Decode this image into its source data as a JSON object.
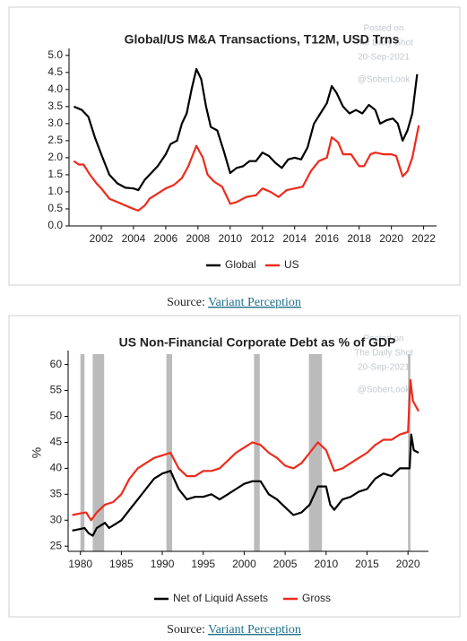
{
  "chart_data": [
    {
      "type": "line",
      "title": "Global/US M&A Transactions, T12M, USD Trns",
      "watermark": [
        "Posted on",
        "The Daily Shot",
        "20-Sep-2021",
        "@SoberLook"
      ],
      "xlim": [
        2000,
        2022.8
      ],
      "xticks": [
        2002,
        2004,
        2006,
        2008,
        2010,
        2012,
        2014,
        2016,
        2018,
        2020,
        2022
      ],
      "ylim": [
        0,
        5.1
      ],
      "yticks": [
        {
          "value": 0,
          "label": "0.0"
        },
        {
          "value": 0.5,
          "label": "0.5"
        },
        {
          "value": 1,
          "label": "1.0"
        },
        {
          "value": 1.5,
          "label": "1.5"
        },
        {
          "value": 2,
          "label": "2.0"
        },
        {
          "value": 2.5,
          "label": "2.5"
        },
        {
          "value": 3,
          "label": "3.0"
        },
        {
          "value": 3.5,
          "label": "3.5"
        },
        {
          "value": 4,
          "label": "4.0"
        },
        {
          "value": 4.5,
          "label": "4.5"
        },
        {
          "value": 5,
          "label": "5.0"
        }
      ],
      "grid": false,
      "legend": "bottom",
      "series": [
        {
          "name": "Global",
          "color": "#000000",
          "x": [
            2000.3,
            2000.8,
            2001.2,
            2001.6,
            2002.0,
            2002.5,
            2003.0,
            2003.5,
            2004.0,
            2004.3,
            2004.7,
            2005.0,
            2005.5,
            2006.0,
            2006.3,
            2006.7,
            2007.0,
            2007.3,
            2007.6,
            2007.9,
            2008.2,
            2008.5,
            2008.8,
            2009.2,
            2009.6,
            2010.0,
            2010.4,
            2010.8,
            2011.2,
            2011.6,
            2012.0,
            2012.4,
            2012.8,
            2013.2,
            2013.6,
            2014.0,
            2014.4,
            2014.8,
            2015.2,
            2015.6,
            2016.0,
            2016.3,
            2016.6,
            2017.0,
            2017.4,
            2017.8,
            2018.2,
            2018.6,
            2019.0,
            2019.3,
            2019.7,
            2020.1,
            2020.4,
            2020.7,
            2021.0,
            2021.3,
            2021.6
          ],
          "values": [
            3.5,
            3.4,
            3.2,
            2.6,
            2.1,
            1.5,
            1.25,
            1.12,
            1.1,
            1.05,
            1.35,
            1.5,
            1.75,
            2.1,
            2.4,
            2.5,
            3.0,
            3.3,
            4.0,
            4.6,
            4.3,
            3.5,
            2.9,
            2.8,
            2.2,
            1.55,
            1.7,
            1.75,
            1.9,
            1.9,
            2.15,
            2.05,
            1.85,
            1.7,
            1.95,
            2.0,
            1.95,
            2.3,
            3.0,
            3.3,
            3.6,
            4.1,
            3.9,
            3.5,
            3.3,
            3.4,
            3.3,
            3.55,
            3.4,
            3.0,
            3.1,
            3.15,
            3.0,
            2.5,
            2.8,
            3.3,
            4.45
          ]
        },
        {
          "name": "US",
          "color": "#ee2a1b",
          "x": [
            2000.3,
            2000.6,
            2000.9,
            2001.3,
            2001.7,
            2002.0,
            2002.5,
            2003.0,
            2003.5,
            2004.0,
            2004.3,
            2004.7,
            2005.0,
            2005.5,
            2006.0,
            2006.5,
            2007.0,
            2007.4,
            2007.9,
            2008.3,
            2008.6,
            2009.0,
            2009.5,
            2010.0,
            2010.4,
            2011.0,
            2011.6,
            2012.0,
            2012.5,
            2013.0,
            2013.5,
            2014.0,
            2014.5,
            2015.0,
            2015.5,
            2016.0,
            2016.3,
            2016.7,
            2017.0,
            2017.5,
            2018.0,
            2018.3,
            2018.7,
            2019.0,
            2019.5,
            2020.0,
            2020.3,
            2020.7,
            2021.0,
            2021.3,
            2021.7
          ],
          "values": [
            1.9,
            1.8,
            1.8,
            1.5,
            1.25,
            1.1,
            0.8,
            0.7,
            0.6,
            0.5,
            0.45,
            0.6,
            0.8,
            0.95,
            1.1,
            1.2,
            1.4,
            1.75,
            2.35,
            2.0,
            1.5,
            1.3,
            1.15,
            0.65,
            0.7,
            0.85,
            0.9,
            1.1,
            1.0,
            0.85,
            1.05,
            1.1,
            1.15,
            1.6,
            1.9,
            2.0,
            2.6,
            2.45,
            2.1,
            2.1,
            1.75,
            1.75,
            2.1,
            2.15,
            2.1,
            2.1,
            2.05,
            1.45,
            1.6,
            2.0,
            2.95
          ]
        }
      ]
    },
    {
      "type": "line",
      "title": "US Non-Financial Corporate Debt as % of GDP",
      "y_label": "%",
      "watermark": [
        "Posted on",
        "The Daily Shot",
        "20-Sep-2021",
        "@SoberLook"
      ],
      "xlim": [
        1978.5,
        2022.5
      ],
      "xticks": [
        1980,
        1985,
        1990,
        1995,
        2000,
        2005,
        2010,
        2015,
        2020
      ],
      "ylim": [
        24,
        62
      ],
      "yticks": [
        25,
        30,
        35,
        40,
        45,
        50,
        55,
        60
      ],
      "grid": false,
      "legend": "bottom",
      "shaded_color": "#bbbbbb",
      "shaded_periods": [
        [
          1980.0,
          1980.5
        ],
        [
          1981.5,
          1982.9
        ],
        [
          1990.5,
          1991.2
        ],
        [
          2001.2,
          2001.9
        ],
        [
          2007.9,
          2009.5
        ],
        [
          2020.0,
          2020.3
        ]
      ],
      "series": [
        {
          "name": "Net of Liquid Assets",
          "color": "#000000",
          "x": [
            1979,
            1980,
            1980.5,
            1981,
            1981.5,
            1982,
            1983,
            1983.5,
            1984,
            1985,
            1986,
            1987,
            1988,
            1989,
            1990,
            1991,
            1992,
            1993,
            1994,
            1995,
            1996,
            1997,
            1998,
            1999,
            2000,
            2001,
            2002,
            2003,
            2004,
            2005,
            2006,
            2007,
            2008,
            2009,
            2010,
            2010.5,
            2011,
            2012,
            2013,
            2014,
            2015,
            2016,
            2017,
            2018,
            2019,
            2019.8,
            2020.2,
            2020.4,
            2020.7,
            2021.3
          ],
          "values": [
            28,
            28.3,
            28.5,
            27.5,
            27.0,
            28.5,
            29.5,
            28.5,
            29,
            30,
            32,
            34,
            36,
            38,
            39,
            39.5,
            36,
            34,
            34.5,
            34.5,
            35,
            34,
            35,
            36,
            37,
            37.5,
            37.5,
            35,
            34,
            32.5,
            31,
            31.5,
            33,
            36.5,
            36.5,
            33,
            32,
            34,
            34.5,
            35.5,
            36,
            38,
            39,
            38.5,
            40,
            40,
            40,
            46.5,
            43.5,
            43
          ]
        },
        {
          "name": "Gross",
          "color": "#ee2a1b",
          "x": [
            1979,
            1980,
            1980.7,
            1981.3,
            1982,
            1983,
            1984,
            1985,
            1986,
            1987,
            1988,
            1989,
            1990,
            1991,
            1992,
            1993,
            1994,
            1995,
            1996,
            1997,
            1998,
            1999,
            2000,
            2001,
            2002,
            2003,
            2004,
            2005,
            2006,
            2007,
            2008,
            2009,
            2010,
            2011,
            2012,
            2013,
            2014,
            2015,
            2016,
            2017,
            2018,
            2019,
            2020,
            2020.3,
            2020.6,
            2021.3
          ],
          "values": [
            31,
            31.3,
            31.5,
            30,
            31.5,
            33,
            33.5,
            35,
            38,
            40,
            41,
            42,
            42.5,
            43,
            40,
            38.5,
            38.5,
            39.5,
            39.5,
            40,
            41.5,
            43,
            44,
            45,
            44.5,
            43,
            42,
            40.5,
            40,
            41,
            43,
            45,
            43.5,
            39.5,
            40,
            41,
            42,
            43,
            44.5,
            45.5,
            45.5,
            46.5,
            47,
            57,
            53,
            51
          ]
        }
      ]
    }
  ],
  "sources": [
    {
      "label": "Source:",
      "link": "Variant Perception"
    },
    {
      "label": "Source:",
      "link": "Variant Perception"
    }
  ]
}
